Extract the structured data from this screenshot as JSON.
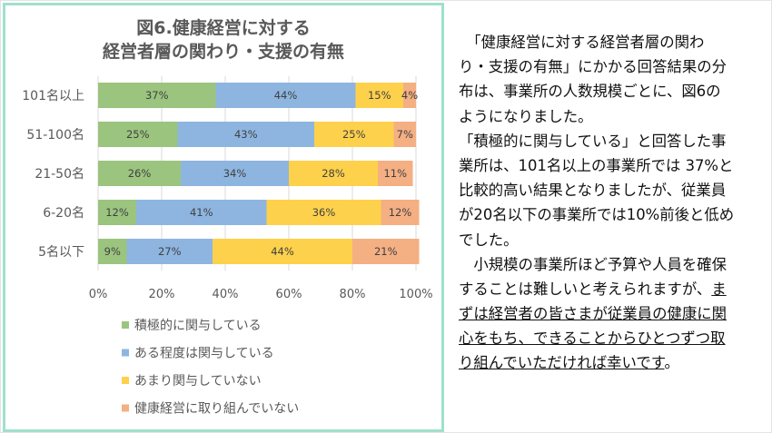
{
  "chart_data": {
    "type": "bar",
    "orientation": "horizontal",
    "stacked": true,
    "title": "図6.健康経営に対する\n経営者層の関わり・支援の有無",
    "title_lines": [
      "図6.健康経営に対する",
      "経営者層の関わり・支援の有無"
    ],
    "categories": [
      "101名以上",
      "51-100名",
      "21-50名",
      "6-20名",
      "5名以下"
    ],
    "series": [
      {
        "name": "積極的に関与している",
        "color": "#9BC47F",
        "values": [
          37,
          25,
          26,
          12,
          9
        ]
      },
      {
        "name": "ある程度は関与している",
        "color": "#8DB5E0",
        "values": [
          44,
          43,
          34,
          41,
          27
        ]
      },
      {
        "name": "あまり関与していない",
        "color": "#FED14C",
        "values": [
          15,
          25,
          28,
          36,
          44
        ]
      },
      {
        "name": "健康経営に取り組んでいない",
        "color": "#F4AF83",
        "values": [
          4,
          7,
          11,
          12,
          21
        ]
      }
    ],
    "xlim": [
      0,
      100
    ],
    "xticks": [
      "0%",
      "20%",
      "40%",
      "60%",
      "80%",
      "100%"
    ],
    "value_suffix": "%",
    "grid": true,
    "legend": "bottom"
  },
  "text": {
    "lines": [
      [
        {
          "t": "　「健康経営に対する経営者層の関わ"
        }
      ],
      [
        {
          "t": "り・支援の有無」にかかる回答結果の分"
        }
      ],
      [
        {
          "t": "布は、事業所の人数規模ごとに、図6の"
        }
      ],
      [
        {
          "t": "ようになりました。"
        }
      ],
      [
        {
          "t": "「積極的に関与している」と回答した事"
        }
      ],
      [
        {
          "t": "業所は、101名以上の事業所では 37%と"
        }
      ],
      [
        {
          "t": "比較的高い結果となりましたが、従業員"
        }
      ],
      [
        {
          "t": "が20名以下の事業所では10%前後と低め"
        }
      ],
      [
        {
          "t": "でした。"
        }
      ],
      [
        {
          "t": "　小規模の事業所ほど予算や人員を確保"
        }
      ],
      [
        {
          "t": "することは難しいと考えられますが、"
        },
        {
          "t": "ま",
          "u": true
        }
      ],
      [
        {
          "t": "ずは経営者の皆さまが従業員の健康に関",
          "u": true
        }
      ],
      [
        {
          "t": "心をもち、できることからひとつずつ取",
          "u": true
        }
      ],
      [
        {
          "t": "り組んでいただければ幸いです",
          "u": true
        },
        {
          "t": "。"
        }
      ]
    ]
  }
}
